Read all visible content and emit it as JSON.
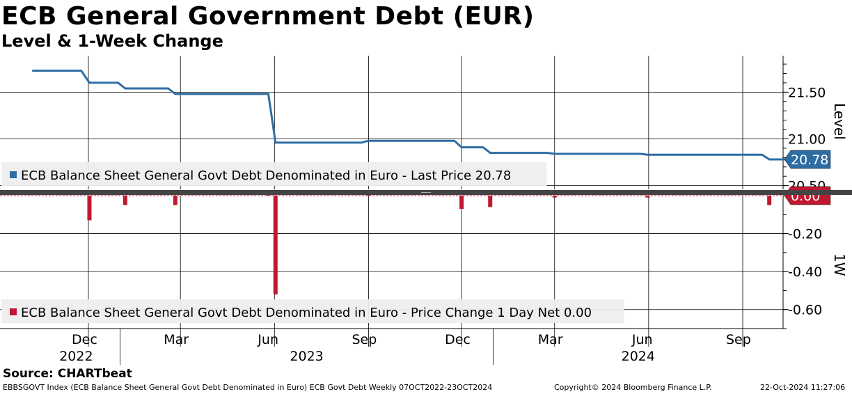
{
  "header": {
    "title": "ECB General Government Debt (EUR)",
    "subtitle": "Level & 1-Week Change"
  },
  "footer": {
    "source": "Source: CHARTbeat",
    "description": "EBBSGOVT Index (ECB Balance Sheet General Govt Debt Denominated in Euro) ECB Govt Debt  Weekly 07OCT2022-23OCT2024",
    "copyright": "Copyright© 2024 Bloomberg Finance L.P.",
    "timestamp": "22-Oct-2024 11:27:06"
  },
  "colors": {
    "level_line": "#2e6da4",
    "change_bar": "#c0182f",
    "divider": "#444444",
    "grid": "#000000",
    "legend_bg": "#eeeeee"
  },
  "chart_data": [
    {
      "type": "line",
      "panel": "top",
      "axis_label": "Level",
      "ylim": [
        20.46,
        21.89
      ],
      "yticks": [
        20.5,
        21.0,
        21.5
      ],
      "ytick_labels": [
        "20.50",
        "21.00",
        "21.50"
      ],
      "grid": true,
      "legend": {
        "label": "ECB Balance Sheet General Govt Debt Denominated in Euro - Last Price 20.78",
        "placement": "bottom-left"
      },
      "last_value_label": "20.78",
      "series": [
        {
          "name": "ECB Balance Sheet General Govt Debt Denominated in Euro",
          "points": [
            [
              "2022-10-07",
              21.73
            ],
            [
              "2022-11-24",
              21.73
            ],
            [
              "2022-12-02",
              21.6
            ],
            [
              "2022-12-30",
              21.6
            ],
            [
              "2023-01-06",
              21.54
            ],
            [
              "2023-02-17",
              21.54
            ],
            [
              "2023-02-24",
              21.48
            ],
            [
              "2023-05-26",
              21.48
            ],
            [
              "2023-06-02",
              20.96
            ],
            [
              "2023-08-25",
              20.96
            ],
            [
              "2023-09-01",
              20.98
            ],
            [
              "2023-11-24",
              20.98
            ],
            [
              "2023-12-01",
              20.91
            ],
            [
              "2023-12-22",
              20.91
            ],
            [
              "2023-12-29",
              20.85
            ],
            [
              "2024-02-23",
              20.85
            ],
            [
              "2024-03-01",
              20.84
            ],
            [
              "2024-05-24",
              20.84
            ],
            [
              "2024-05-31",
              20.83
            ],
            [
              "2024-09-20",
              20.83
            ],
            [
              "2024-09-27",
              20.78
            ],
            [
              "2024-10-18",
              20.78
            ]
          ]
        }
      ]
    },
    {
      "type": "bar",
      "panel": "bottom",
      "axis_label": "1W",
      "ylim": [
        -0.7,
        0.0
      ],
      "yticks": [
        -0.6,
        -0.4,
        -0.2
      ],
      "ytick_labels": [
        "-0.60",
        "-0.40",
        "-0.20"
      ],
      "grid": true,
      "legend": {
        "label": "ECB Balance Sheet General Govt Debt Denominated in Euro - Price Change 1 Day Net 0.00",
        "placement": "bottom-left"
      },
      "last_value_label": "0.00",
      "series": [
        {
          "name": "ECB Balance Sheet General Govt Debt Denominated in Euro - Price Change 1 Day Net",
          "points": [
            [
              "2022-12-02",
              -0.13
            ],
            [
              "2023-01-06",
              -0.05
            ],
            [
              "2023-02-24",
              -0.05
            ],
            [
              "2023-05-26",
              0.005
            ],
            [
              "2023-06-02",
              -0.52
            ],
            [
              "2023-09-01",
              0.01
            ],
            [
              "2023-12-01",
              -0.07
            ],
            [
              "2023-12-29",
              -0.06
            ],
            [
              "2024-03-01",
              -0.01
            ],
            [
              "2024-05-31",
              -0.01
            ],
            [
              "2024-09-27",
              -0.05
            ]
          ]
        }
      ]
    }
  ],
  "x_axis": {
    "range": [
      "2022-10-07",
      "2024-10-23"
    ],
    "months": [
      {
        "label": "Dec",
        "date": "2022-12-01"
      },
      {
        "label": "Mar",
        "date": "2023-03-01"
      },
      {
        "label": "Jun",
        "date": "2023-06-01"
      },
      {
        "label": "Sep",
        "date": "2023-09-01"
      },
      {
        "label": "Dec",
        "date": "2023-12-01"
      },
      {
        "label": "Mar",
        "date": "2024-03-01"
      },
      {
        "label": "Jun",
        "date": "2024-06-01"
      },
      {
        "label": "Sep",
        "date": "2024-09-01"
      }
    ],
    "years": [
      {
        "label": "2022",
        "from": "2022-10-07",
        "to": "2023-01-01"
      },
      {
        "label": "2023",
        "from": "2023-01-01",
        "to": "2024-01-01"
      },
      {
        "label": "2024",
        "from": "2024-01-01",
        "to": "2024-10-23"
      }
    ],
    "year_separators": [
      "2023-01-01",
      "2024-01-01"
    ]
  }
}
